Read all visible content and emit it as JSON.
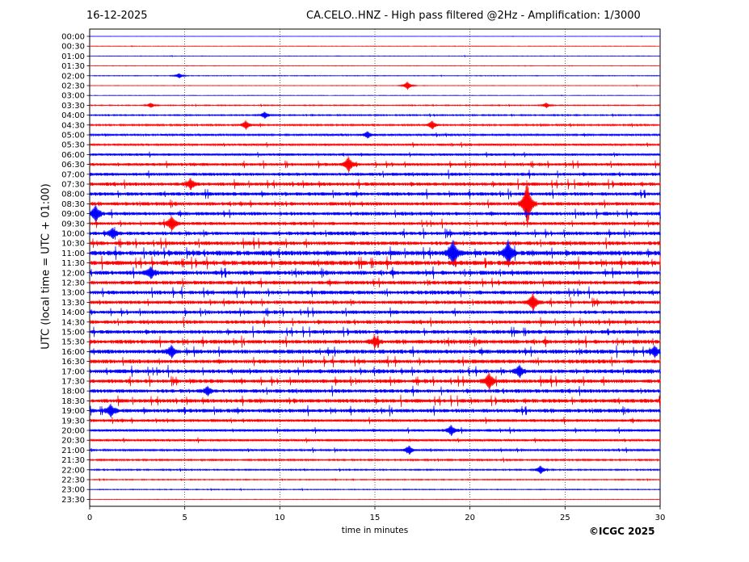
{
  "header": {
    "date": "16-12-2025",
    "title": "CA.CELO..HNZ - High pass filtered @2Hz - Amplification: 1/3000"
  },
  "footer": {
    "copyright": "©ICGC 2025"
  },
  "chart_data": {
    "type": "line",
    "title": "CA.CELO..HNZ - High pass filtered @2Hz - Amplification: 1/3000",
    "xlabel": "time in minutes",
    "ylabel": "UTC (local time = UTC + 01:00)",
    "xlim": [
      0,
      30
    ],
    "x_ticks": [
      0,
      5,
      10,
      15,
      20,
      25,
      30
    ],
    "vertical_gridlines_at": [
      5,
      10,
      15,
      20,
      25
    ],
    "trace_colors": [
      "#0000ff",
      "#ff0000"
    ],
    "row_labels": [
      "00:00",
      "00:30",
      "01:00",
      "01:30",
      "02:00",
      "02:30",
      "03:00",
      "03:30",
      "04:00",
      "04:30",
      "05:00",
      "05:30",
      "06:00",
      "06:30",
      "07:00",
      "07:30",
      "08:00",
      "08:30",
      "09:00",
      "09:30",
      "10:00",
      "10:30",
      "11:00",
      "11:30",
      "12:00",
      "12:30",
      "13:00",
      "13:30",
      "14:00",
      "14:30",
      "15:00",
      "15:30",
      "16:00",
      "16:30",
      "17:00",
      "17:30",
      "18:00",
      "18:30",
      "19:00",
      "19:30",
      "20:00",
      "20:30",
      "21:00",
      "21:30",
      "22:00",
      "22:30",
      "23:00",
      "23:30"
    ],
    "row_noise_level": [
      0.2,
      0.3,
      0.3,
      0.3,
      0.4,
      0.3,
      0.3,
      0.6,
      0.8,
      1.0,
      1.2,
      1.3,
      1.5,
      1.8,
      2.0,
      2.2,
      2.2,
      2.2,
      2.2,
      2.0,
      2.3,
      2.4,
      3.0,
      2.8,
      2.6,
      2.4,
      2.4,
      2.2,
      2.2,
      2.2,
      2.3,
      2.5,
      2.6,
      2.4,
      2.5,
      2.4,
      2.3,
      2.4,
      2.3,
      1.8,
      1.6,
      1.4,
      1.2,
      1.0,
      0.8,
      0.6,
      0.5,
      0.3
    ],
    "events": [
      {
        "row": "02:00",
        "minute": 4.7,
        "amp": 3
      },
      {
        "row": "02:30",
        "minute": 16.7,
        "amp": 5
      },
      {
        "row": "03:30",
        "minute": 3.2,
        "amp": 3
      },
      {
        "row": "03:30",
        "minute": 24.0,
        "amp": 3
      },
      {
        "row": "04:00",
        "minute": 9.2,
        "amp": 4
      },
      {
        "row": "04:30",
        "minute": 8.2,
        "amp": 5
      },
      {
        "row": "04:30",
        "minute": 18.0,
        "amp": 5
      },
      {
        "row": "05:00",
        "minute": 14.6,
        "amp": 4
      },
      {
        "row": "06:30",
        "minute": 13.6,
        "amp": 9
      },
      {
        "row": "07:30",
        "minute": 5.3,
        "amp": 6
      },
      {
        "row": "08:30",
        "minute": 23.0,
        "amp": 30
      },
      {
        "row": "09:00",
        "minute": 0.3,
        "amp": 10
      },
      {
        "row": "09:30",
        "minute": 4.3,
        "amp": 9
      },
      {
        "row": "10:00",
        "minute": 1.2,
        "amp": 6
      },
      {
        "row": "11:00",
        "minute": 19.1,
        "amp": 16
      },
      {
        "row": "11:00",
        "minute": 22.0,
        "amp": 16
      },
      {
        "row": "12:00",
        "minute": 3.2,
        "amp": 7
      },
      {
        "row": "13:30",
        "minute": 23.3,
        "amp": 10
      },
      {
        "row": "15:30",
        "minute": 15.0,
        "amp": 5
      },
      {
        "row": "16:00",
        "minute": 4.3,
        "amp": 7
      },
      {
        "row": "16:00",
        "minute": 29.7,
        "amp": 6
      },
      {
        "row": "17:00",
        "minute": 22.6,
        "amp": 7
      },
      {
        "row": "17:30",
        "minute": 21.0,
        "amp": 10
      },
      {
        "row": "18:00",
        "minute": 6.2,
        "amp": 5
      },
      {
        "row": "19:00",
        "minute": 1.1,
        "amp": 7
      },
      {
        "row": "20:00",
        "minute": 19.0,
        "amp": 6
      },
      {
        "row": "21:00",
        "minute": 16.8,
        "amp": 5
      },
      {
        "row": "22:00",
        "minute": 23.7,
        "amp": 5
      }
    ]
  }
}
